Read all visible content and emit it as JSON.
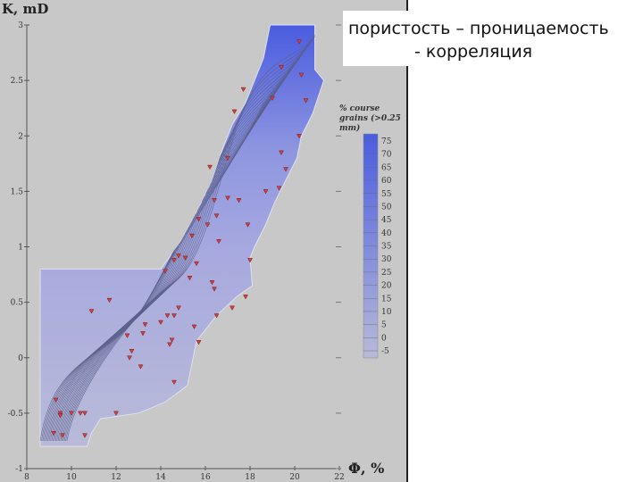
{
  "title": {
    "line1": "пористость – проницаемость",
    "line2": "- корреляция"
  },
  "chart_data": {
    "type": "contour",
    "xlabel": "Φ, %",
    "ylabel": "K, mD",
    "xlim": [
      8,
      22
    ],
    "ylim": [
      -1,
      3
    ],
    "x_ticks": [
      "8",
      "10",
      "12",
      "14",
      "16",
      "18",
      "20",
      "22"
    ],
    "y_ticks": [
      "3",
      "2.5",
      "2",
      "1.5",
      "1",
      "0.5",
      "0",
      "-0.5",
      "-1"
    ],
    "legend": {
      "title": "% course grains (>0.25 mm)",
      "levels": [
        "75",
        "70",
        "65",
        "60",
        "55",
        "50",
        "45",
        "40",
        "35",
        "30",
        "25",
        "20",
        "15",
        "10",
        "5",
        "0",
        "-5"
      ],
      "color_high": "#4a5ce0",
      "color_low": "#b8bad8"
    },
    "region_outline": [
      [
        18.9,
        3
      ],
      [
        20.9,
        3
      ],
      [
        20.9,
        2.6
      ],
      [
        21.3,
        2.5
      ],
      [
        20.8,
        2.2
      ],
      [
        20.3,
        2.0
      ],
      [
        20.1,
        1.8
      ],
      [
        19.6,
        1.6
      ],
      [
        19.1,
        1.4
      ],
      [
        18.7,
        1.2
      ],
      [
        18.2,
        1.0
      ],
      [
        18.0,
        0.9
      ],
      [
        18.1,
        0.65
      ],
      [
        17.4,
        0.55
      ],
      [
        16.5,
        0.38
      ],
      [
        15.6,
        0.15
      ],
      [
        15.2,
        -0.25
      ],
      [
        14.2,
        -0.4
      ],
      [
        13.0,
        -0.5
      ],
      [
        11.3,
        -0.55
      ],
      [
        10.9,
        -0.68
      ],
      [
        10.7,
        -0.8
      ],
      [
        8.6,
        -0.8
      ],
      [
        8.6,
        0.8
      ],
      [
        14.0,
        0.8
      ],
      [
        14.9,
        1.05
      ],
      [
        15.7,
        1.35
      ],
      [
        16.3,
        1.6
      ],
      [
        16.8,
        1.9
      ],
      [
        17.2,
        2.1
      ],
      [
        17.8,
        2.3
      ],
      [
        18.2,
        2.5
      ],
      [
        18.6,
        2.7
      ]
    ],
    "points": [
      [
        20.2,
        2.85
      ],
      [
        19.4,
        2.62
      ],
      [
        20.3,
        2.55
      ],
      [
        17.7,
        2.42
      ],
      [
        19.0,
        2.34
      ],
      [
        20.5,
        2.32
      ],
      [
        17.3,
        2.22
      ],
      [
        20.2,
        2.0
      ],
      [
        19.4,
        1.85
      ],
      [
        17.0,
        1.8
      ],
      [
        19.6,
        1.7
      ],
      [
        16.2,
        1.72
      ],
      [
        19.3,
        1.53
      ],
      [
        18.7,
        1.5
      ],
      [
        17.0,
        1.44
      ],
      [
        16.4,
        1.42
      ],
      [
        17.5,
        1.42
      ],
      [
        15.7,
        1.25
      ],
      [
        16.5,
        1.28
      ],
      [
        17.9,
        1.2
      ],
      [
        16.1,
        1.2
      ],
      [
        15.4,
        1.1
      ],
      [
        16.6,
        1.05
      ],
      [
        14.8,
        0.92
      ],
      [
        15.1,
        0.9
      ],
      [
        18.0,
        0.88
      ],
      [
        14.6,
        0.88
      ],
      [
        15.6,
        0.85
      ],
      [
        14.2,
        0.78
      ],
      [
        15.3,
        0.72
      ],
      [
        16.3,
        0.68
      ],
      [
        16.4,
        0.62
      ],
      [
        17.2,
        0.45
      ],
      [
        16.5,
        0.38
      ],
      [
        17.8,
        0.55
      ],
      [
        11.7,
        0.52
      ],
      [
        10.9,
        0.42
      ],
      [
        14.8,
        0.45
      ],
      [
        14.3,
        0.38
      ],
      [
        14.6,
        0.38
      ],
      [
        14.0,
        0.32
      ],
      [
        13.3,
        0.3
      ],
      [
        15.5,
        0.28
      ],
      [
        13.2,
        0.22
      ],
      [
        12.5,
        0.2
      ],
      [
        14.5,
        0.16
      ],
      [
        15.7,
        0.14
      ],
      [
        14.4,
        0.12
      ],
      [
        12.6,
        0.0
      ],
      [
        12.7,
        0.06
      ],
      [
        13.1,
        -0.08
      ],
      [
        14.6,
        -0.22
      ],
      [
        9.3,
        -0.38
      ],
      [
        9.5,
        -0.5
      ],
      [
        9.5,
        -0.52
      ],
      [
        10.0,
        -0.5
      ],
      [
        10.4,
        -0.5
      ],
      [
        10.6,
        -0.5
      ],
      [
        12.0,
        -0.5
      ],
      [
        9.2,
        -0.68
      ],
      [
        9.6,
        -0.7
      ],
      [
        10.6,
        -0.7
      ]
    ]
  }
}
